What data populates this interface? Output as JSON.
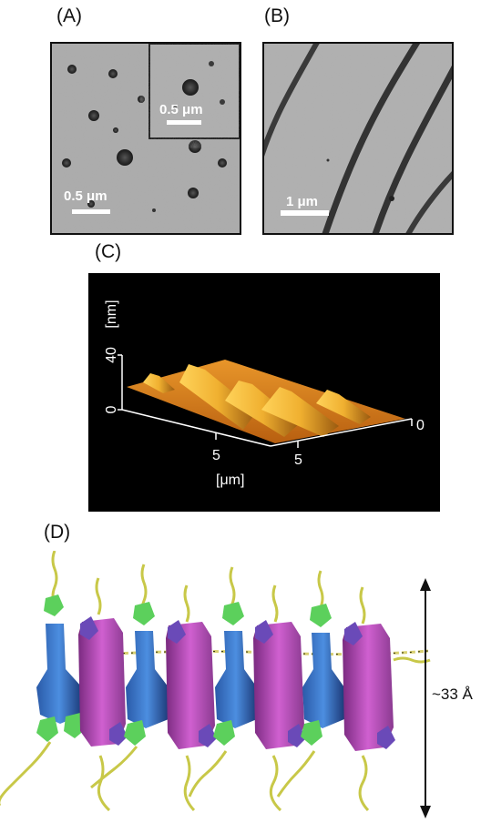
{
  "panel_a": {
    "label": "(A)",
    "scale_main": "0.5 μm",
    "scale_inset": "0.5 μm"
  },
  "panel_b": {
    "label": "(B)",
    "scale": "1 μm"
  },
  "panel_c": {
    "label": "(C)",
    "z_unit": "[nm]",
    "z_tick_top": "40",
    "z_tick_bottom": "0",
    "x_tick_left": "5",
    "x_tick_right": "5",
    "x_tick_end": "0",
    "xy_unit": "[μm]"
  },
  "panel_d": {
    "label": "(D)",
    "dimension": "~33 Å"
  }
}
